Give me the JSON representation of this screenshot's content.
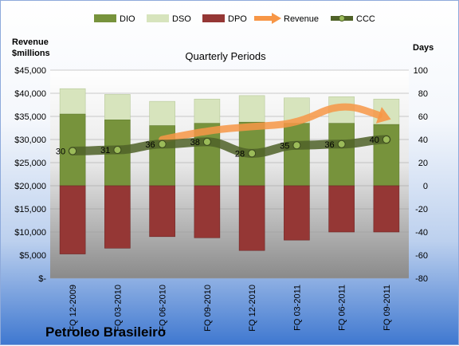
{
  "chart_data": {
    "type": "bar",
    "subtitle": "Quarterly Periods",
    "company": "Petroleo Brasileiro",
    "left_axis_title": [
      "Revenue",
      "$millions"
    ],
    "right_axis_title": "Days",
    "categories": [
      "FQ 12-2009",
      "FQ 03-2010",
      "FQ 06-2010",
      "FQ 09-2010",
      "FQ 12-2010",
      "FQ 03-2011",
      "FQ 06-2011",
      "FQ 09-2011"
    ],
    "left_ticks": [
      "$45,000",
      "$40,000",
      "$35,000",
      "$30,000",
      "$25,000",
      "$20,000",
      "$15,000",
      "$10,000",
      "$5,000",
      "$-"
    ],
    "right_ticks": [
      "100",
      "80",
      "60",
      "40",
      "20",
      "0",
      "-20",
      "-40",
      "-60",
      "-80"
    ],
    "ylim_left": [
      0,
      45000
    ],
    "ylim_right": [
      -80,
      100
    ],
    "legend_position": "top",
    "series": [
      {
        "name": "DIO",
        "axis": "right",
        "kind": "bar",
        "color": "#77933c",
        "values": [
          62,
          57,
          52,
          54,
          55,
          54,
          54,
          53
        ]
      },
      {
        "name": "DSO",
        "axis": "right",
        "kind": "bar-stacked",
        "color": "#d7e4bd",
        "values": [
          22,
          22,
          21,
          21,
          23,
          22,
          23,
          22
        ]
      },
      {
        "name": "DPO",
        "axis": "right",
        "kind": "bar-negative",
        "color": "#953735",
        "values": [
          -59,
          -54,
          -44,
          -45,
          -56,
          -47,
          -40,
          -40
        ]
      },
      {
        "name": "Revenue",
        "axis": "left",
        "kind": "line",
        "color": "#f79646",
        "values": [
          null,
          null,
          30000,
          32000,
          32800,
          33400,
          38000,
          34700
        ]
      },
      {
        "name": "CCC",
        "axis": "right",
        "kind": "line",
        "color": "#4f6228",
        "values": [
          30,
          31,
          36,
          38,
          28,
          35,
          36,
          40
        ]
      }
    ]
  }
}
